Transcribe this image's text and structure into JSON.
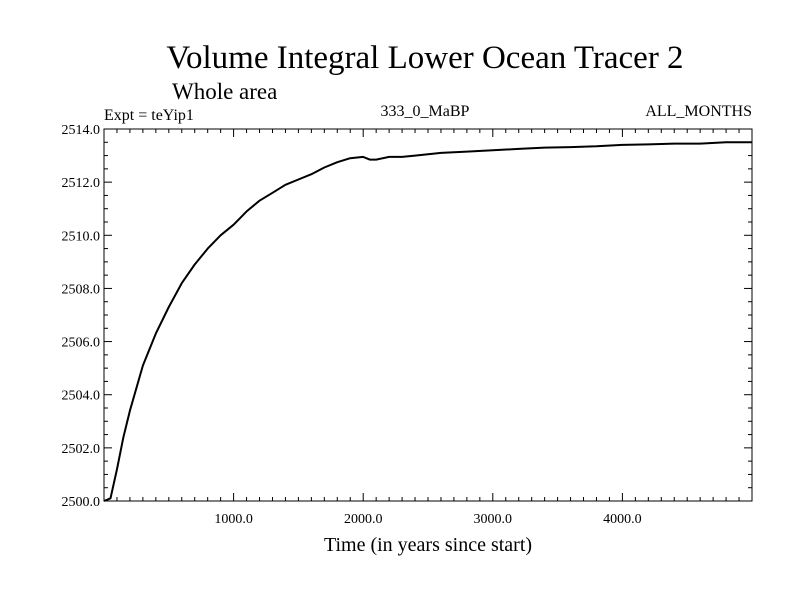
{
  "chart_data": {
    "type": "line",
    "title": "Volume Integral Lower Ocean Tracer 2",
    "subtitle": "Whole area",
    "experiment": "Expt = teYip1",
    "period": "333_0_MaBP",
    "months": "ALL_MONTHS",
    "xlabel": "Time (in years since start)",
    "ylabel": "",
    "xlim": [
      0,
      5000
    ],
    "ylim": [
      2500.0,
      2514.0
    ],
    "x_ticks": [
      1000,
      2000,
      3000,
      4000
    ],
    "x_tick_labels": [
      "1000.0",
      "2000.0",
      "3000.0",
      "4000.0"
    ],
    "y_ticks": [
      2500,
      2502,
      2504,
      2506,
      2508,
      2510,
      2512,
      2514
    ],
    "y_tick_labels": [
      "2500.0",
      "2502.0",
      "2504.0",
      "2506.0",
      "2508.0",
      "2510.0",
      "2512.0",
      "2514.0"
    ],
    "grid": false,
    "series": [
      {
        "name": "Volume Integral Lower Ocean Tracer 2",
        "x": [
          0,
          50,
          100,
          150,
          200,
          300,
          400,
          500,
          600,
          700,
          800,
          900,
          1000,
          1100,
          1200,
          1300,
          1400,
          1500,
          1600,
          1700,
          1800,
          1900,
          2000,
          2050,
          2100,
          2200,
          2300,
          2400,
          2500,
          2600,
          2800,
          3000,
          3200,
          3400,
          3600,
          3800,
          4000,
          4200,
          4400,
          4600,
          4800,
          5000
        ],
        "values": [
          2500.0,
          2500.1,
          2501.2,
          2502.4,
          2503.4,
          2505.1,
          2506.3,
          2507.3,
          2508.2,
          2508.9,
          2509.5,
          2510.0,
          2510.4,
          2510.9,
          2511.3,
          2511.6,
          2511.9,
          2512.1,
          2512.3,
          2512.55,
          2512.75,
          2512.9,
          2512.95,
          2512.85,
          2512.85,
          2512.95,
          2512.95,
          2513.0,
          2513.05,
          2513.1,
          2513.15,
          2513.2,
          2513.25,
          2513.3,
          2513.32,
          2513.35,
          2513.4,
          2513.42,
          2513.45,
          2513.45,
          2513.5,
          2513.5
        ]
      }
    ]
  }
}
